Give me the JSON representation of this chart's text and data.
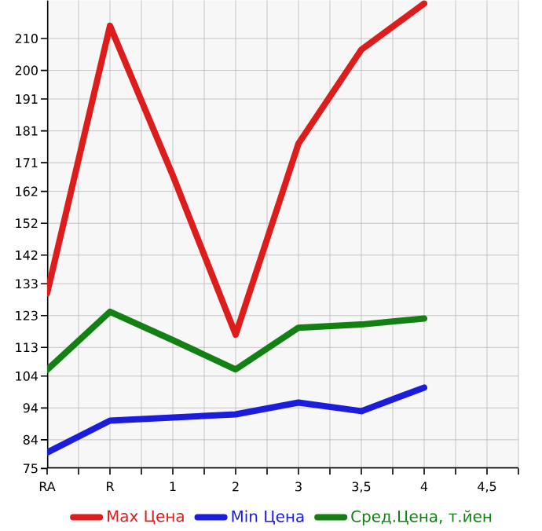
{
  "chart_data": {
    "type": "line",
    "categories": [
      "RA",
      "R",
      "1",
      "2",
      "3",
      "3,5",
      "4",
      "4,5"
    ],
    "series": [
      {
        "name": "Max Цена",
        "color": "#dd1c1c",
        "values": [
          130,
          214,
          167,
          117,
          177,
          206.5,
          221,
          null
        ]
      },
      {
        "name": "Min Цена",
        "color": "#1c1cdd",
        "values": [
          80,
          90,
          91,
          92,
          95.7,
          93,
          100.4,
          null
        ]
      },
      {
        "name": "Сред.Цена, т.йен",
        "color": "#138013",
        "values": [
          106,
          124.2,
          115.3,
          106.1,
          119.2,
          120.2,
          122.1,
          null
        ]
      }
    ],
    "ylim": [
      75,
      222
    ],
    "yticks": [
      75,
      84,
      94,
      104,
      113,
      123,
      133,
      142,
      152,
      162,
      171,
      181,
      191,
      200,
      210
    ],
    "grid": true,
    "legend": "bottom",
    "marker": "none",
    "line_style": "solid"
  }
}
